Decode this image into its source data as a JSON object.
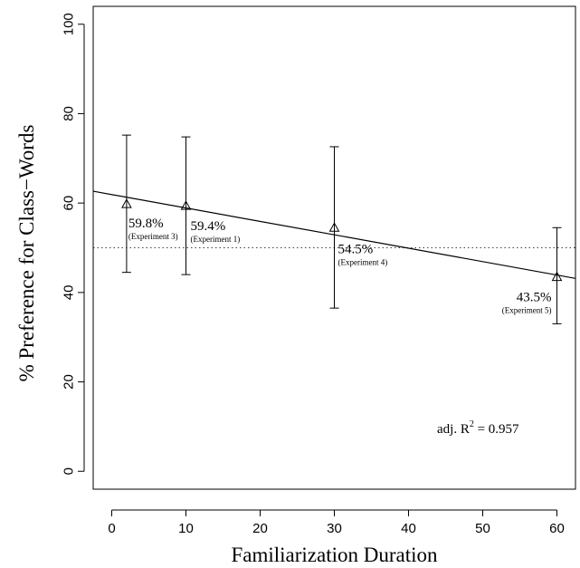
{
  "chart_data": {
    "type": "scatter",
    "xlabel": "Familiarization Duration",
    "ylabel": "% Preference for Class−Words",
    "xlim": [
      -2.5,
      62.5
    ],
    "ylim": [
      -4,
      104
    ],
    "xticks": [
      0,
      10,
      20,
      30,
      40,
      50,
      60
    ],
    "yticks": [
      0,
      20,
      40,
      60,
      80,
      100
    ],
    "grid": false,
    "points": [
      {
        "x": 2,
        "y": 59.8,
        "ylow": 44.5,
        "yhigh": 75.2,
        "label": "59.8%",
        "sublabel": "(Experiment 3)"
      },
      {
        "x": 10,
        "y": 59.4,
        "ylow": 44.0,
        "yhigh": 74.8,
        "label": "59.4%",
        "sublabel": "(Experiment 1)"
      },
      {
        "x": 30,
        "y": 54.5,
        "ylow": 36.5,
        "yhigh": 72.6,
        "label": "54.5%",
        "sublabel": "(Experiment 4)"
      },
      {
        "x": 60,
        "y": 43.5,
        "ylow": 33.0,
        "yhigh": 54.5,
        "label": "43.5%",
        "sublabel": "(Experiment 5)"
      }
    ],
    "fit_line": {
      "intercept": 61.9,
      "slope": -0.3
    },
    "reference_line": {
      "y": 50,
      "style": "dotted"
    },
    "annotation": {
      "prefix": "adj. R",
      "superscript": "2",
      "suffix": " = 0.957"
    }
  }
}
